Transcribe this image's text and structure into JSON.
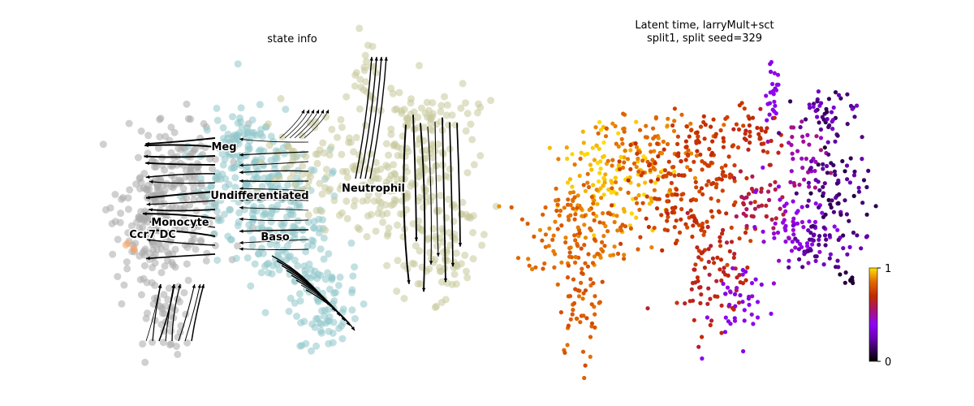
{
  "chart_data": [
    {
      "type": "scatter",
      "title": "state info",
      "embedding": "streamline velocity plot",
      "legend": "on data",
      "grid": false,
      "axes_visible": false,
      "clusters": [
        {
          "name": "Meg",
          "color": "#8fc6ca"
        },
        {
          "name": "Undifferentiated",
          "color": "#8fc6ca"
        },
        {
          "name": "Neutrophil",
          "color": "#c6c99a"
        },
        {
          "name": "Monocyte",
          "color": "#a9a9a9"
        },
        {
          "name": "Ccr7 DC",
          "color": "#f2a46b"
        },
        {
          "name": "Baso",
          "color": "#8fc6ca"
        }
      ]
    },
    {
      "type": "scatter",
      "title_lines": [
        "Latent time, larryMult+sct",
        "split1, split seed=329"
      ],
      "colormap": "gnuplot",
      "colorbar": {
        "min": 0,
        "max": 1,
        "tick_labels": [
          "1",
          "0"
        ],
        "placement": "right"
      },
      "grid": false,
      "axes_visible": false
    }
  ],
  "colors": {
    "arrow": "#000000",
    "background": "#ffffff"
  }
}
